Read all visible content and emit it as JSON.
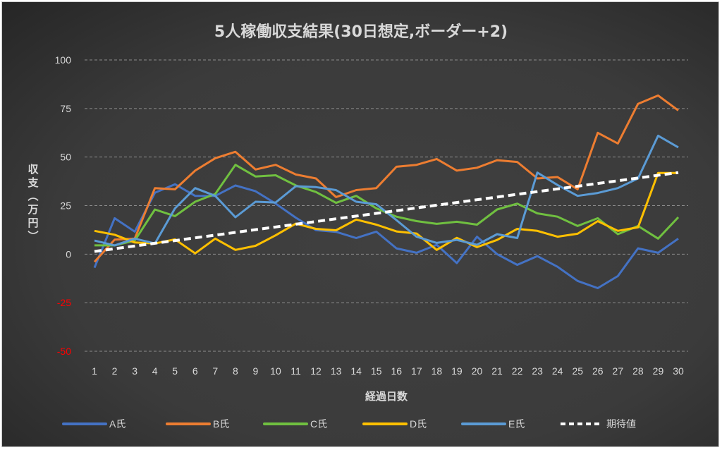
{
  "chart_data": {
    "type": "line",
    "title": "5人稼働収支結果(30日想定,ボーダー+2)",
    "xlabel": "経過日数",
    "ylabel": "収支（万円）",
    "ylim": [
      -50,
      100
    ],
    "yticks": [
      100,
      75,
      50,
      25,
      0,
      -25,
      -50
    ],
    "ytick_labels": [
      "100",
      "75",
      "50",
      "25",
      "0",
      "-25",
      "-50"
    ],
    "negative_tick_color": "#ff0000",
    "grid": "horizontal dashed",
    "legend_position": "bottom",
    "x": [
      1,
      2,
      3,
      4,
      5,
      6,
      7,
      8,
      9,
      10,
      11,
      12,
      13,
      14,
      15,
      16,
      17,
      18,
      19,
      20,
      21,
      22,
      23,
      24,
      25,
      26,
      27,
      28,
      29,
      30
    ],
    "x_tick_labels": [
      "1",
      "2",
      "3",
      "4",
      "5",
      "6",
      "7",
      "8",
      "9",
      "10",
      "11",
      "12",
      "13",
      "14",
      "15",
      "16",
      "17",
      "18",
      "19",
      "20",
      "21",
      "22",
      "23",
      "24",
      "25",
      "26",
      "27",
      "28",
      "29",
      "30"
    ],
    "series": [
      {
        "name": "A氏",
        "color": "#4472c4",
        "dashed": false,
        "values": [
          -7,
          18.5,
          11.6,
          31.6,
          36,
          30,
          30,
          35.4,
          32.4,
          26,
          18.8,
          12.4,
          11.5,
          8.3,
          11.6,
          3,
          0.7,
          4.8,
          -4.6,
          9,
          0,
          -5.5,
          -1,
          -6.5,
          -13.8,
          -17.5,
          -11.3,
          3,
          0.7,
          8
        ]
      },
      {
        "name": "B氏",
        "color": "#ed7d31",
        "dashed": false,
        "values": [
          -4,
          7.5,
          8,
          34,
          33.4,
          43,
          49.4,
          52.7,
          43.6,
          46,
          41,
          39,
          29.4,
          33,
          34,
          45,
          46,
          49,
          43,
          44.5,
          48.4,
          47.5,
          39,
          39.7,
          33.4,
          62.5,
          57,
          77.4,
          81.7,
          74
        ]
      },
      {
        "name": "C氏",
        "color": "#70c040",
        "dashed": false,
        "values": [
          4.5,
          4.5,
          7,
          23,
          19.6,
          27,
          31,
          46,
          40,
          40.6,
          35.4,
          32,
          26.4,
          30,
          23.6,
          19.3,
          17,
          15.6,
          16.7,
          15.2,
          23,
          26,
          21,
          19.3,
          14.5,
          18.5,
          10.3,
          14.5,
          8,
          19
        ]
      },
      {
        "name": "D氏",
        "color": "#ffc000",
        "dashed": false,
        "values": [
          12,
          10,
          6,
          5.5,
          7.6,
          0.4,
          8,
          2.2,
          4.3,
          9.7,
          15.7,
          13,
          12.3,
          17.8,
          15.2,
          11.7,
          10.6,
          2.2,
          8.4,
          3.6,
          7.3,
          13,
          12,
          9,
          10.5,
          17,
          12,
          13.8,
          41.8,
          41.8
        ]
      },
      {
        "name": "E氏",
        "color": "#5b9bd5",
        "dashed": false,
        "values": [
          7,
          4.5,
          8,
          5.5,
          23.6,
          34,
          30,
          19,
          27,
          26.6,
          35,
          34.5,
          33,
          27,
          25.7,
          17.5,
          9,
          5.8,
          7.3,
          4.8,
          10.3,
          8.3,
          42,
          35.6,
          30,
          31.5,
          34,
          39,
          61,
          55
        ]
      },
      {
        "name": "期待値",
        "color": "#ffffff",
        "dashed": true,
        "values": [
          1.4,
          2.8,
          4.2,
          5.6,
          7,
          8.4,
          9.8,
          11.2,
          12.6,
          14,
          15.4,
          16.8,
          18.2,
          19.6,
          21,
          22.4,
          23.8,
          25.2,
          26.6,
          28,
          29.4,
          30.8,
          32.2,
          33.6,
          35,
          36.4,
          37.8,
          39.2,
          40.6,
          42
        ]
      }
    ]
  }
}
